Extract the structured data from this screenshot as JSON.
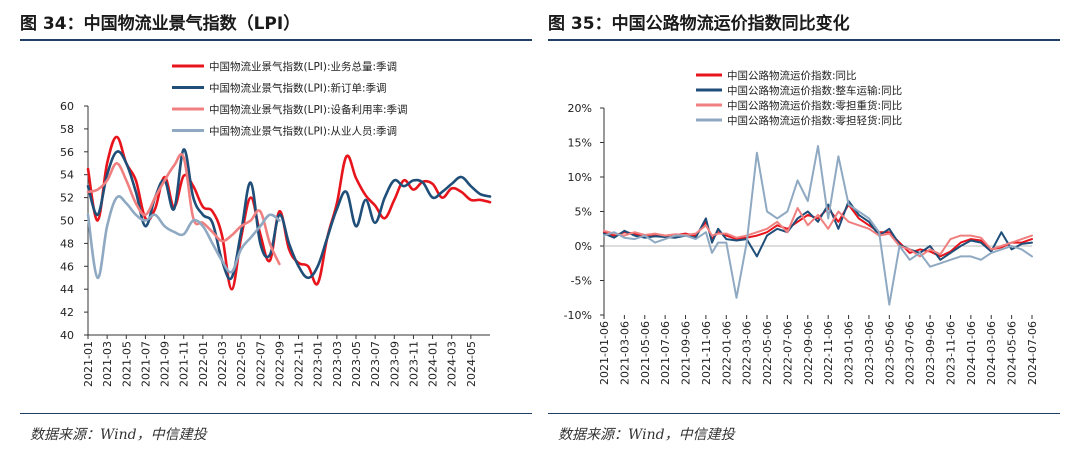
{
  "left": {
    "title": "图 34：中国物流业景气指数（LPI）",
    "source": "数据来源：Wind，中信建投"
  },
  "right": {
    "title": "图 35：中国公路物流运价指数同比变化",
    "source": "数据来源：Wind，中信建投"
  },
  "chart_data": [
    {
      "type": "line",
      "title": "",
      "x_tick_labels": [
        "2021-01",
        "2021-03",
        "2021-05",
        "2021-07",
        "2021-09",
        "2021-11",
        "2022-01",
        "2022-03",
        "2022-05",
        "2022-07",
        "2022-09",
        "2022-11",
        "2023-01",
        "2023-03",
        "2023-05",
        "2023-07",
        "2023-09",
        "2023-11",
        "2024-01",
        "2024-03",
        "2024-05"
      ],
      "ylim": [
        40,
        60
      ],
      "y_ticks": [
        40,
        42,
        44,
        46,
        48,
        50,
        52,
        54,
        56,
        58,
        60
      ],
      "legend_position": "top",
      "series": [
        {
          "name": "中国物流业景气指数(LPI):业务总量:季调",
          "color": "#e8141c",
          "x": [
            0,
            1,
            2,
            3,
            4,
            5,
            6,
            7,
            8,
            9,
            10,
            11,
            12,
            13,
            14,
            15,
            16,
            17,
            18,
            19,
            20,
            21,
            22,
            23,
            24,
            25,
            26,
            27,
            28,
            29,
            30,
            31,
            32,
            33,
            34,
            35,
            36,
            37,
            38,
            39,
            40,
            41,
            42
          ],
          "values": [
            54.5,
            50.0,
            55.0,
            57.3,
            55.0,
            53.5,
            50.2,
            51.0,
            53.8,
            51.2,
            53.9,
            53.0,
            51.2,
            50.8,
            48.7,
            44.0,
            48.5,
            52.0,
            48.8,
            46.5,
            50.8,
            47.5,
            46.3,
            46.0,
            44.5,
            48.5,
            51.5,
            55.6,
            53.7,
            52.2,
            51.3,
            50.2,
            51.8,
            53.5,
            52.7,
            53.4,
            53.2,
            52.0,
            52.8,
            52.5,
            51.8,
            51.8,
            51.6
          ]
        },
        {
          "name": "中国物流业景气指数(LPI):新订单:季调",
          "color": "#1f4e79",
          "x": [
            0,
            1,
            2,
            3,
            4,
            5,
            6,
            7,
            8,
            9,
            10,
            11,
            12,
            13,
            14,
            15,
            16,
            17,
            18,
            19,
            20,
            21,
            22,
            23,
            24,
            25,
            26,
            27,
            28,
            29,
            30,
            31,
            32,
            33,
            34,
            35,
            36,
            37,
            38,
            39,
            40,
            41,
            42
          ],
          "values": [
            53.0,
            50.5,
            54.0,
            56.0,
            55.0,
            52.5,
            49.5,
            52.0,
            53.5,
            51.0,
            56.2,
            52.0,
            50.5,
            49.8,
            46.5,
            45.0,
            49.0,
            53.3,
            48.0,
            47.0,
            50.5,
            48.0,
            46.0,
            45.0,
            46.0,
            48.5,
            51.0,
            52.5,
            49.5,
            51.8,
            49.8,
            52.0,
            53.5,
            53.0,
            53.5,
            53.3,
            52.0,
            52.5,
            53.2,
            53.8,
            53.0,
            52.3,
            52.1
          ]
        },
        {
          "name": "中国物流业景气指数(LPI):设备利用率:季调",
          "color": "#f08080",
          "x": [
            0,
            1,
            2,
            3,
            4,
            5,
            6,
            7,
            8,
            9,
            10,
            11,
            12,
            13,
            14,
            15,
            16,
            17,
            18,
            19,
            20
          ],
          "values": [
            52.5,
            52.7,
            53.5,
            55.0,
            53.5,
            51.5,
            50.5,
            52.0,
            53.5,
            54.8,
            55.5,
            50.2,
            49.8,
            49.0,
            48.2,
            48.7,
            49.5,
            50.0,
            50.8,
            48.0,
            46.2
          ]
        },
        {
          "name": "中国物流业景气指数(LPI):从业人员:季调",
          "color": "#8fa9c2",
          "x": [
            0,
            1,
            2,
            3,
            4,
            5,
            6,
            7,
            8,
            9,
            10,
            11,
            12,
            13,
            14,
            15,
            16,
            17,
            18,
            19,
            20
          ],
          "values": [
            50.5,
            45.0,
            49.5,
            52.0,
            51.5,
            50.5,
            50.0,
            50.5,
            49.5,
            49.0,
            48.8,
            50.0,
            49.5,
            48.0,
            46.5,
            45.5,
            47.5,
            48.5,
            49.5,
            50.5,
            50.0
          ]
        }
      ]
    },
    {
      "type": "line",
      "title": "",
      "x_tick_labels": [
        "2021-01-06",
        "2021-03-06",
        "2021-05-06",
        "2021-07-06",
        "2021-09-06",
        "2021-11-06",
        "2022-01-06",
        "2022-03-06",
        "2022-05-06",
        "2022-07-06",
        "2022-09-06",
        "2022-11-06",
        "2023-01-06",
        "2023-03-06",
        "2023-05-06",
        "2023-07-06",
        "2023-09-06",
        "2023-11-06",
        "2024-01-06",
        "2024-03-06",
        "2024-05-06",
        "2024-07-06"
      ],
      "ylim": [
        -10,
        20
      ],
      "y_ticks": [
        "-10%",
        "-5%",
        "0%",
        "5%",
        "10%",
        "15%",
        "20%"
      ],
      "y_tick_values": [
        -10,
        -5,
        0,
        5,
        10,
        15,
        20
      ],
      "legend_position": "top",
      "series": [
        {
          "name": "中国公路物流运价指数:同比",
          "color": "#e8141c",
          "x": [
            0,
            0.5,
            1,
            1.5,
            2,
            2.5,
            3,
            3.5,
            4,
            4.5,
            5,
            5.3,
            5.6,
            6,
            6.5,
            7,
            7.5,
            8,
            8.5,
            9,
            9.5,
            10,
            10.5,
            11,
            11.5,
            12,
            12.5,
            13,
            13.5,
            14,
            14.5,
            15,
            15.5,
            16,
            16.5,
            17,
            17.5,
            18,
            18.5,
            19,
            19.5,
            20,
            20.5,
            21
          ],
          "values": [
            2.0,
            1.5,
            2.0,
            1.8,
            1.5,
            1.7,
            1.5,
            1.6,
            1.8,
            1.5,
            3.5,
            1.0,
            2.0,
            1.5,
            1.0,
            1.2,
            1.5,
            2.0,
            3.0,
            2.5,
            3.5,
            4.5,
            4.0,
            5.5,
            3.5,
            6.0,
            4.0,
            3.0,
            2.0,
            2.0,
            0.5,
            -1.0,
            -0.5,
            -0.8,
            -1.5,
            -0.8,
            0.5,
            1.0,
            0.8,
            -0.5,
            -0.2,
            0.5,
            0.5,
            1.0
          ]
        },
        {
          "name": "中国公路物流运价指数:整车运输:同比",
          "color": "#1f4e79",
          "x": [
            0,
            0.5,
            1,
            1.5,
            2,
            2.5,
            3,
            3.5,
            4,
            4.5,
            5,
            5.3,
            5.6,
            6,
            6.5,
            7,
            7.5,
            8,
            8.5,
            9,
            9.5,
            10,
            10.5,
            11,
            11.5,
            12,
            12.5,
            13,
            13.5,
            14,
            14.5,
            15,
            15.5,
            16,
            16.5,
            17,
            17.5,
            18,
            18.5,
            19,
            19.5,
            20,
            20.5,
            21
          ],
          "values": [
            1.8,
            1.2,
            2.2,
            1.5,
            1.2,
            1.4,
            1.3,
            1.2,
            1.5,
            1.2,
            4.0,
            0.5,
            2.5,
            1.0,
            0.8,
            1.0,
            -1.5,
            1.5,
            2.5,
            2.0,
            4.0,
            5.0,
            3.5,
            6.0,
            2.5,
            6.5,
            4.5,
            3.5,
            1.5,
            2.5,
            0.2,
            -0.5,
            -1.0,
            0.0,
            -2.0,
            -1.0,
            0.0,
            0.8,
            0.5,
            -0.8,
            2.0,
            -0.5,
            0.3,
            0.5
          ]
        },
        {
          "name": "中国公路物流运价指数:零担重货:同比",
          "color": "#f08080",
          "x": [
            0,
            0.5,
            1,
            1.5,
            2,
            2.5,
            3,
            3.5,
            4,
            4.5,
            5,
            5.3,
            5.6,
            6,
            6.5,
            7,
            7.5,
            8,
            8.5,
            9,
            9.5,
            10,
            10.5,
            11,
            11.5,
            12,
            12.5,
            13,
            13.5,
            14,
            14.5,
            15,
            15.5,
            16,
            16.5,
            17,
            17.5,
            18,
            18.5,
            19,
            19.5,
            20,
            20.5,
            21
          ],
          "values": [
            2.2,
            1.8,
            1.5,
            2.0,
            1.6,
            1.8,
            1.5,
            1.7,
            1.6,
            1.8,
            3.0,
            1.5,
            1.8,
            1.8,
            1.2,
            1.5,
            2.0,
            2.5,
            3.5,
            2.0,
            5.5,
            3.0,
            4.5,
            2.5,
            5.0,
            3.5,
            3.0,
            2.5,
            1.5,
            1.8,
            0.0,
            -0.5,
            -1.5,
            -0.5,
            -1.2,
            1.0,
            1.5,
            1.5,
            1.2,
            -0.5,
            0.0,
            0.5,
            1.0,
            1.5
          ]
        },
        {
          "name": "中国公路物流运价指数:零担轻货:同比",
          "color": "#8fa9c2",
          "x": [
            0,
            0.5,
            1,
            1.5,
            2,
            2.5,
            3,
            3.5,
            4,
            4.5,
            5,
            5.3,
            5.6,
            6,
            6.5,
            7,
            7.5,
            8,
            8.5,
            9,
            9.5,
            10,
            10.5,
            11,
            11.5,
            12,
            12.5,
            13,
            13.5,
            14,
            14.5,
            15,
            15.5,
            16,
            16.5,
            17,
            17.5,
            18,
            18.5,
            19,
            19.5,
            20,
            20.5,
            21
          ],
          "values": [
            1.5,
            2.0,
            1.2,
            1.0,
            1.5,
            0.5,
            1.0,
            1.5,
            1.5,
            1.0,
            2.0,
            -1.0,
            0.5,
            0.5,
            -7.5,
            0.5,
            13.5,
            5.0,
            4.0,
            5.0,
            9.5,
            6.5,
            14.5,
            4.0,
            13.0,
            6.0,
            5.0,
            4.0,
            2.0,
            -8.5,
            0.0,
            -2.0,
            -1.0,
            -3.0,
            -2.5,
            -2.0,
            -1.5,
            -1.5,
            -2.0,
            -1.0,
            -0.5,
            0.0,
            -0.5,
            -1.5
          ]
        }
      ]
    }
  ]
}
